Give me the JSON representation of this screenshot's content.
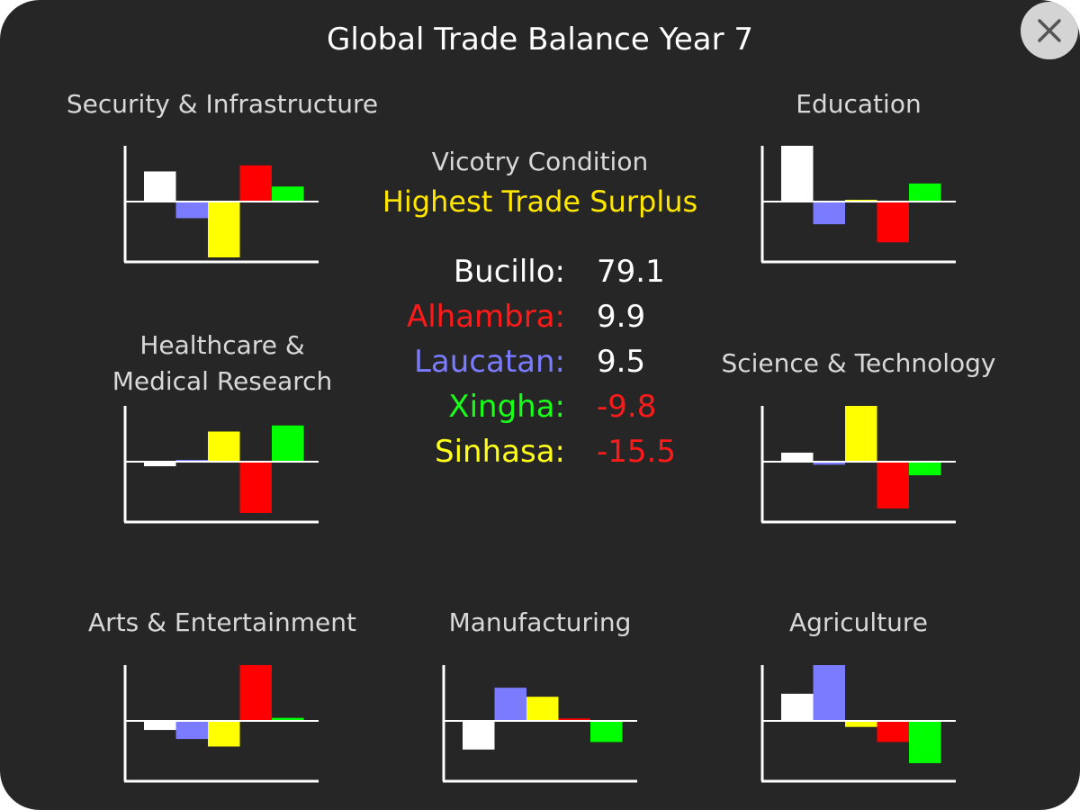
{
  "title": "Global Trade Balance Year 7",
  "close_icon": "close-icon",
  "victory": {
    "label": "Vicotry Condition",
    "condition": "Highest Trade Surplus",
    "condition_color": "#ffe600"
  },
  "players": [
    {
      "name": "Bucillo:",
      "score": "79.1",
      "name_color": "#ffffff",
      "score_color": "#ffffff"
    },
    {
      "name": "Alhambra:",
      "score": "9.9",
      "name_color": "#ff1a1a",
      "score_color": "#ffffff"
    },
    {
      "name": "Laucatan:",
      "score": "9.5",
      "name_color": "#7b7bff",
      "score_color": "#ffffff"
    },
    {
      "name": "Xingha:",
      "score": "-9.8",
      "name_color": "#1aff1a",
      "score_color": "#ff1a1a"
    },
    {
      "name": "Sinhasa:",
      "score": "-15.5",
      "name_color": "#ffff1a",
      "score_color": "#ff1a1a"
    }
  ],
  "series_colors": [
    "#ffffff",
    "#7b7bff",
    "#ffff00",
    "#ff0000",
    "#00ff00"
  ],
  "chart_data": [
    {
      "type": "bar",
      "title": "Security & Infrastructure",
      "values": [
        1.0,
        -0.55,
        -1.85,
        1.2,
        0.5
      ],
      "ylim": [
        -1.85,
        1.85
      ]
    },
    {
      "type": "bar",
      "title": "Education",
      "values": [
        1.85,
        -0.75,
        0.06,
        -1.35,
        0.6
      ],
      "ylim": [
        -1.85,
        1.85
      ]
    },
    {
      "type": "bar",
      "title": "Healthcare &\nMedical Research",
      "values": [
        -0.15,
        0.06,
        1.0,
        -1.7,
        1.2
      ],
      "ylim": [
        -1.85,
        1.85
      ]
    },
    {
      "type": "bar",
      "title": "Science & Technology",
      "values": [
        0.3,
        -0.1,
        1.85,
        -1.55,
        -0.45
      ],
      "ylim": [
        -1.85,
        1.85
      ]
    },
    {
      "type": "bar",
      "title": "Arts & Entertainment",
      "values": [
        -0.3,
        -0.6,
        -0.85,
        1.85,
        0.1
      ],
      "ylim": [
        -1.85,
        1.85
      ]
    },
    {
      "type": "bar",
      "title": "Manufacturing",
      "values": [
        -0.95,
        1.1,
        0.8,
        0.08,
        -0.7
      ],
      "ylim": [
        -1.85,
        1.85
      ]
    },
    {
      "type": "bar",
      "title": "Agriculture",
      "values": [
        0.9,
        1.85,
        -0.2,
        -0.7,
        -1.4
      ],
      "ylim": [
        -1.85,
        1.85
      ]
    }
  ]
}
